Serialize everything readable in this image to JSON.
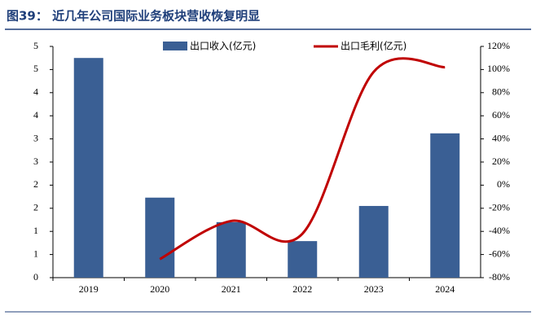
{
  "chart_data": {
    "type": "bar_line",
    "title": "图39：  近几年公司国际业务板块营收恢复明显",
    "categories": [
      "2019",
      "2020",
      "2021",
      "2022",
      "2023",
      "2024"
    ],
    "series": [
      {
        "name": "出口收入(亿元)",
        "type": "bar",
        "color": "#3a5f94",
        "axis": "y",
        "values": [
          4.75,
          1.73,
          1.2,
          0.79,
          1.55,
          3.12
        ]
      },
      {
        "name": "出口毛利(亿元)",
        "type": "line",
        "color": "#c00000",
        "axis": "y2",
        "values": [
          null,
          -64,
          -31,
          -42,
          98,
          102
        ]
      }
    ],
    "ylim": [
      0,
      5
    ],
    "yticks": [
      0,
      {
        "value": 0.5,
        "label": "1"
      },
      1,
      {
        "value": 1.5,
        "label": "2"
      },
      2,
      {
        "value": 2.5,
        "label": "3"
      },
      3,
      {
        "value": 3.5,
        "label": "4"
      },
      4,
      {
        "value": 4.5,
        "label": "5"
      },
      5
    ],
    "y2lim": [
      -80,
      120
    ],
    "y2ticks": [
      {
        "value": -80,
        "label": "-80%"
      },
      {
        "value": -60,
        "label": "-60%"
      },
      {
        "value": -40,
        "label": "-40%"
      },
      {
        "value": -20,
        "label": "-20%"
      },
      {
        "value": 0,
        "label": "0%"
      },
      {
        "value": 20,
        "label": "20%"
      },
      {
        "value": 40,
        "label": "40%"
      },
      {
        "value": 60,
        "label": "60%"
      },
      {
        "value": 80,
        "label": "80%"
      },
      {
        "value": 100,
        "label": "100%"
      },
      {
        "value": 120,
        "label": "120%"
      }
    ],
    "grid": false
  }
}
